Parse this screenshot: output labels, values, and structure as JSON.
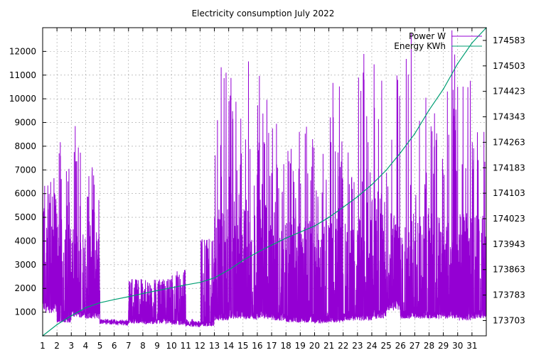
{
  "chart_data": {
    "type": "line",
    "title": "Electricity consumption July 2022",
    "xlabel": "",
    "ylabel": "",
    "y2label": "",
    "xlim": [
      1,
      32
    ],
    "ylim": [
      0,
      13000
    ],
    "y2lim": [
      173655,
      174623
    ],
    "x_ticks": [
      "1",
      "2",
      "3",
      "4",
      "5",
      "6",
      "7",
      "8",
      "9",
      "10",
      "11",
      "12",
      "13",
      "14",
      "15",
      "16",
      "17",
      "18",
      "19",
      "20",
      "21",
      "22",
      "23",
      "24",
      "25",
      "26",
      "27",
      "28",
      "29",
      "30",
      "31"
    ],
    "y_ticks": [
      1000,
      2000,
      3000,
      4000,
      5000,
      6000,
      7000,
      8000,
      9000,
      10000,
      11000,
      12000
    ],
    "y2_ticks": [
      173703,
      173783,
      173863,
      173943,
      174023,
      174103,
      174183,
      174263,
      174343,
      174423,
      174503,
      174583
    ],
    "grid": true,
    "legend_position": "top-right",
    "series": [
      {
        "name": "Power W",
        "axis": "y1",
        "color": "#9400D3",
        "day_profile": {
          "days": [
            1,
            2,
            3,
            4,
            5,
            6,
            7,
            8,
            9,
            10,
            11,
            12,
            13,
            14,
            15,
            16,
            17,
            18,
            19,
            20,
            21,
            22,
            23,
            24,
            25,
            26,
            27,
            28,
            29,
            30,
            31
          ],
          "base_w": [
            1200,
            700,
            950,
            900,
            600,
            550,
            650,
            600,
            650,
            550,
            450,
            500,
            800,
            900,
            850,
            900,
            800,
            700,
            700,
            650,
            700,
            800,
            800,
            900,
            1300,
            900,
            900,
            900,
            900,
            800,
            900
          ],
          "typical_peak_w": [
            6000,
            5000,
            4500,
            5000,
            600,
            600,
            2300,
            2200,
            2300,
            2300,
            600,
            4000,
            5500,
            6000,
            5500,
            6000,
            5000,
            5000,
            5000,
            5000,
            5000,
            4500,
            5000,
            6000,
            5200,
            5200,
            5200,
            5200,
            5200,
            5200,
            5200
          ],
          "max_w": [
            6700,
            9000,
            9000,
            7200,
            700,
            700,
            2400,
            2400,
            2400,
            2800,
            700,
            4100,
            12000,
            12000,
            12000,
            13000,
            9000,
            9000,
            9000,
            9000,
            12000,
            9000,
            12000,
            13000,
            13000,
            13000,
            13000,
            13000,
            13000,
            12000,
            9000
          ]
        }
      },
      {
        "name": "Energy KWh",
        "axis": "y2",
        "color": "#009E73",
        "x": [
          1,
          2,
          3,
          4,
          5,
          6,
          7,
          8,
          9,
          10,
          11,
          12,
          13,
          14,
          15,
          16,
          17,
          18,
          19,
          20,
          21,
          22,
          23,
          24,
          25,
          26,
          27,
          28,
          29,
          30,
          31,
          32
        ],
        "values": [
          173655,
          173690,
          173718,
          173743,
          173759,
          173769,
          173778,
          173788,
          173797,
          173806,
          173815,
          173823,
          173837,
          173862,
          173892,
          173917,
          173940,
          173962,
          173981,
          174000,
          174027,
          174059,
          174092,
          174130,
          174175,
          174230,
          174290,
          174364,
          174430,
          174510,
          174575,
          174623
        ]
      }
    ]
  }
}
